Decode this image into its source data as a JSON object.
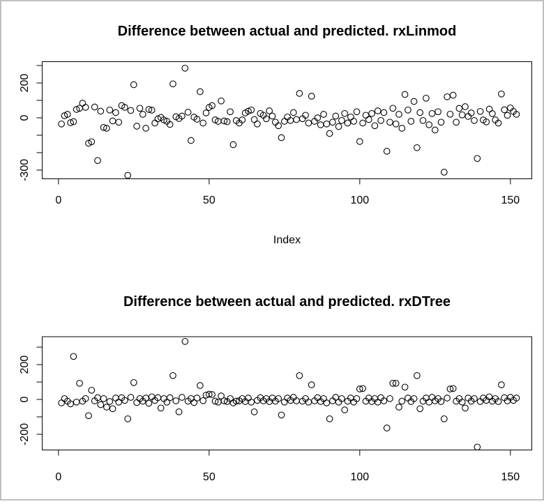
{
  "window": {
    "background": "#ffffff",
    "border_color": "#c0c0c0",
    "plot_color": "#000000"
  },
  "chart_data": [
    {
      "type": "scatter",
      "title": "Difference between actual and predicted. rxLinmod",
      "xlabel": "Index",
      "ylabel": "",
      "marker": "open-circle",
      "grid": false,
      "legend": "none",
      "x_start": 1,
      "x_step": 1,
      "xlim": [
        -5.4,
        157.1
      ],
      "ylim": [
        -350,
        322
      ],
      "xticks": [
        {
          "value": 0,
          "label": "0"
        },
        {
          "value": 50,
          "label": "50"
        },
        {
          "value": 100,
          "label": "100"
        },
        {
          "value": 150,
          "label": "150"
        }
      ],
      "yticks": [
        {
          "value": 300,
          "label": ""
        },
        {
          "value": 200,
          "label": "200"
        },
        {
          "value": 100,
          "label": ""
        },
        {
          "value": 0,
          "label": "0"
        },
        {
          "value": -100,
          "label": ""
        },
        {
          "value": -200,
          "label": ""
        },
        {
          "value": -300,
          "label": "-300"
        }
      ],
      "y": [
        -35,
        12,
        20,
        -28,
        -22,
        48,
        55,
        84,
        60,
        -146,
        -137,
        62,
        -245,
        38,
        -55,
        -60,
        45,
        -18,
        30,
        -25,
        70,
        60,
        -330,
        42,
        190,
        -48,
        55,
        20,
        -60,
        48,
        44,
        -30,
        -6,
        2,
        -12,
        -20,
        -38,
        195,
        6,
        -4,
        10,
        285,
        32,
        -130,
        4,
        -8,
        150,
        -30,
        28,
        60,
        70,
        -12,
        -20,
        97,
        -18,
        -22,
        35,
        -154,
        -16,
        -30,
        -12,
        28,
        38,
        45,
        -10,
        -35,
        25,
        15,
        -5,
        40,
        10,
        -25,
        -45,
        -114,
        -20,
        5,
        -15,
        30,
        -10,
        140,
        -5,
        15,
        -30,
        124,
        -20,
        0,
        -40,
        20,
        -35,
        -90,
        -25,
        10,
        -50,
        -15,
        25,
        -30,
        5,
        -20,
        35,
        -136,
        -30,
        15,
        -10,
        25,
        -45,
        40,
        -15,
        30,
        -192,
        -25,
        55,
        -35,
        20,
        -60,
        134,
        45,
        -20,
        94,
        -171,
        30,
        -15,
        113,
        -40,
        25,
        -70,
        35,
        -25,
        -312,
        121,
        21,
        130,
        -25,
        54,
        17,
        64,
        8,
        28,
        -15,
        -233,
        37,
        -12,
        -23,
        50,
        24,
        -12,
        -30,
        137,
        46,
        14,
        57,
        37,
        20
      ]
    },
    {
      "type": "scatter",
      "title": "Difference between actual and predicted. rxDTree",
      "xlabel": "",
      "ylabel": "",
      "marker": "open-circle",
      "grid": false,
      "legend": "none",
      "x_start": 1,
      "x_step": 1,
      "xlim": [
        -5.4,
        157.1
      ],
      "ylim": [
        -290,
        360
      ],
      "xticks": [
        {
          "value": 0,
          "label": "0"
        },
        {
          "value": 50,
          "label": "50"
        },
        {
          "value": 100,
          "label": "100"
        },
        {
          "value": 150,
          "label": "150"
        }
      ],
      "yticks": [
        {
          "value": 300,
          "label": ""
        },
        {
          "value": 200,
          "label": "200"
        },
        {
          "value": 100,
          "label": ""
        },
        {
          "value": 0,
          "label": "0"
        },
        {
          "value": -100,
          "label": ""
        },
        {
          "value": -200,
          "label": "-200"
        }
      ],
      "y": [
        -20,
        5,
        -10,
        -25,
        247,
        -15,
        93,
        -10,
        5,
        -93,
        53,
        -8,
        10,
        -30,
        5,
        -44,
        -12,
        -53,
        8,
        -15,
        10,
        -5,
        -111,
        12,
        97,
        -18,
        5,
        -10,
        8,
        -22,
        15,
        -5,
        10,
        -49,
        5,
        -15,
        10,
        137,
        -8,
        -71,
        12,
        333,
        -10,
        5,
        -18,
        8,
        80,
        -7,
        25,
        30,
        28,
        -10,
        -15,
        20,
        -8,
        -12,
        5,
        -20,
        -10,
        -8,
        5,
        -12,
        8,
        -15,
        -71,
        -5,
        10,
        -8,
        5,
        -12,
        8,
        -10,
        5,
        -89,
        -15,
        8,
        -5,
        12,
        -8,
        137,
        -10,
        5,
        -15,
        84,
        -8,
        10,
        -12,
        5,
        -20,
        -111,
        -8,
        12,
        -15,
        5,
        -60,
        -10,
        8,
        -15,
        5,
        60,
        63,
        -10,
        8,
        -12,
        5,
        -15,
        10,
        -8,
        -164,
        5,
        93,
        93,
        -44,
        -10,
        71,
        8,
        -12,
        5,
        137,
        -53,
        -10,
        8,
        -15,
        12,
        -8,
        5,
        -12,
        -111,
        8,
        60,
        63,
        -10,
        5,
        -15,
        -49,
        8,
        -10,
        5,
        -273,
        -12,
        8,
        -5,
        15,
        -10,
        5,
        -12,
        84,
        10,
        -8,
        12,
        -5,
        8
      ]
    }
  ]
}
